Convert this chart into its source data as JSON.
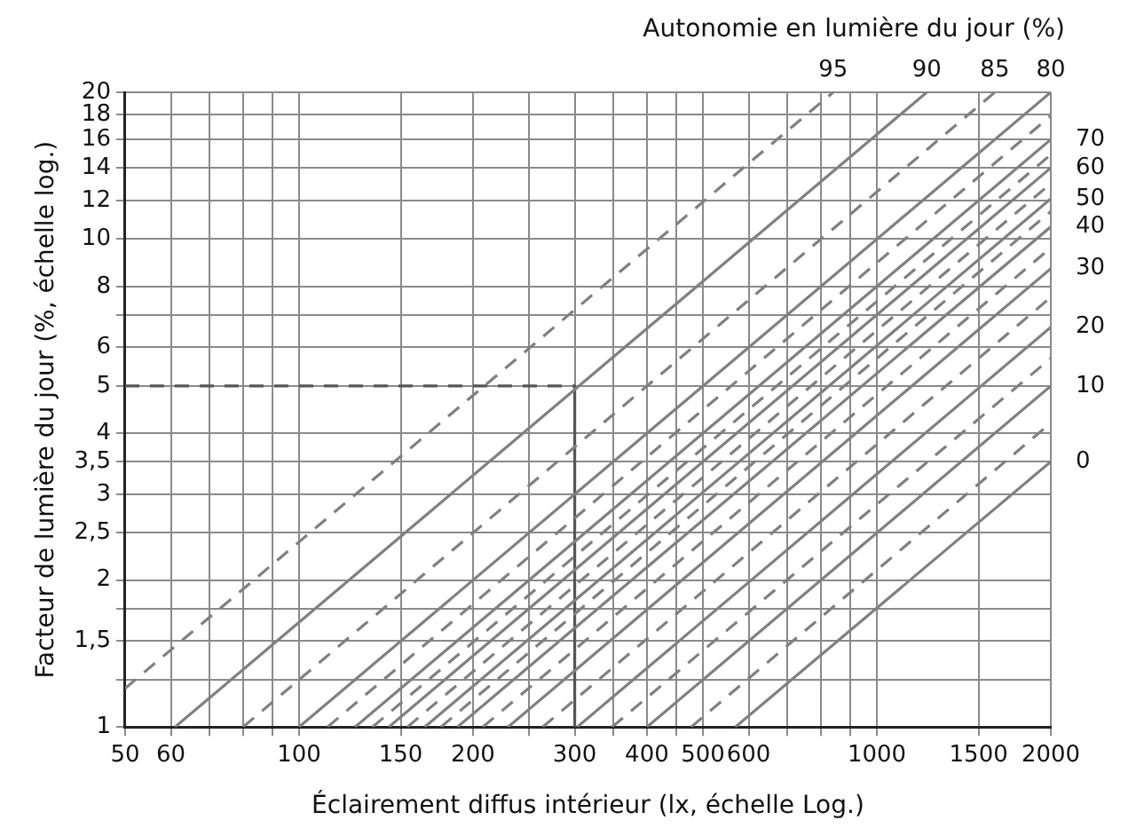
{
  "chart_data": {
    "type": "line",
    "xlabel": "Éclairement diffus intérieur (lx, échelle Log.)",
    "ylabel": "Facteur de lumière du jour (%, échelle log.)",
    "annotations": [
      "Autonomie en lumière du jour (%)"
    ],
    "log": "xy",
    "grid": true,
    "legend": false,
    "marker": "none",
    "xlim": [
      50,
      2000
    ],
    "ylim": [
      1,
      20
    ],
    "xticks": [
      50,
      60,
      {
        "value": 70,
        "label": null
      },
      {
        "value": 80,
        "label": null
      },
      {
        "value": 90,
        "label": null
      },
      100,
      150,
      200,
      {
        "value": 250,
        "label": null
      },
      300,
      {
        "value": 350,
        "label": null
      },
      400,
      {
        "value": 450,
        "label": null
      },
      500,
      600,
      {
        "value": 700,
        "label": null
      },
      {
        "value": 800,
        "label": null
      },
      {
        "value": 900,
        "label": null
      },
      1000,
      1500,
      2000
    ],
    "yticks": [
      1,
      {
        "value": 1.25,
        "label": null
      },
      {
        "value": 1.5,
        "label": "1,5"
      },
      {
        "value": 1.75,
        "label": null
      },
      2,
      {
        "value": 2.5,
        "label": "2,5"
      },
      3,
      {
        "value": 3.5,
        "label": "3,5"
      },
      4,
      5,
      6,
      {
        "value": 7,
        "label": null
      },
      8,
      10,
      12,
      14,
      16,
      18,
      20
    ],
    "series": [
      {
        "name": "95",
        "color": "#808080",
        "line_style": "dashed",
        "x": [
          50,
          840
        ],
        "values": [
          1.2,
          20
        ]
      },
      {
        "name": "90",
        "color": "#808080",
        "line_style": "solid",
        "x": [
          61,
          1220
        ],
        "values": [
          1,
          20
        ]
      },
      {
        "name": "85",
        "color": "#808080",
        "line_style": "dashed",
        "x": [
          80,
          1600
        ],
        "values": [
          1,
          20
        ]
      },
      {
        "name": "80",
        "color": "#808080",
        "line_style": "solid",
        "x": [
          100,
          2000
        ],
        "values": [
          1,
          20
        ]
      },
      {
        "color": "#808080",
        "line_style": "dashed",
        "x": [
          112,
          2000
        ],
        "values": [
          1,
          17.9
        ]
      },
      {
        "name": "70",
        "color": "#808080",
        "line_style": "solid",
        "x": [
          125,
          2000
        ],
        "values": [
          1,
          16
        ]
      },
      {
        "color": "#808080",
        "line_style": "dashed",
        "x": [
          134,
          2000
        ],
        "values": [
          1,
          14.9
        ]
      },
      {
        "name": "60",
        "color": "#808080",
        "line_style": "solid",
        "x": [
          143,
          2000
        ],
        "values": [
          1,
          14
        ]
      },
      {
        "color": "#808080",
        "line_style": "dashed",
        "x": [
          154,
          2000
        ],
        "values": [
          1,
          13
        ]
      },
      {
        "name": "50",
        "color": "#808080",
        "line_style": "solid",
        "x": [
          165,
          2000
        ],
        "values": [
          1,
          12.1
        ]
      },
      {
        "color": "#808080",
        "line_style": "dashed",
        "x": [
          176,
          2000
        ],
        "values": [
          1,
          11.4
        ]
      },
      {
        "name": "40",
        "color": "#808080",
        "line_style": "solid",
        "x": [
          188,
          2000
        ],
        "values": [
          1,
          10.6
        ]
      },
      {
        "color": "#808080",
        "line_style": "dashed",
        "x": [
          208,
          2000
        ],
        "values": [
          1,
          9.6
        ]
      },
      {
        "name": "30",
        "color": "#808080",
        "line_style": "solid",
        "x": [
          230,
          2000
        ],
        "values": [
          1,
          8.7
        ]
      },
      {
        "color": "#808080",
        "line_style": "dashed",
        "x": [
          264,
          2000
        ],
        "values": [
          1,
          7.6
        ]
      },
      {
        "name": "20",
        "color": "#808080",
        "line_style": "solid",
        "x": [
          303,
          2000
        ],
        "values": [
          1,
          6.6
        ]
      },
      {
        "color": "#808080",
        "line_style": "dashed",
        "x": [
          348,
          2000
        ],
        "values": [
          1,
          5.7
        ]
      },
      {
        "name": "10",
        "color": "#808080",
        "line_style": "solid",
        "x": [
          400,
          2000
        ],
        "values": [
          1,
          5
        ]
      },
      {
        "color": "#808080",
        "line_style": "dashed",
        "x": [
          477,
          2000
        ],
        "values": [
          1,
          4.2
        ]
      },
      {
        "name": "0",
        "color": "#808080",
        "line_style": "solid",
        "x": [
          569,
          2000
        ],
        "values": [
          1,
          3.5
        ]
      },
      {
        "color": "#555555",
        "line_style": "dashed",
        "x": [
          50,
          300
        ],
        "values": [
          5,
          5
        ]
      },
      {
        "color": "#555555",
        "line_style": "solid",
        "x": [
          300,
          300
        ],
        "values": [
          5,
          1
        ]
      }
    ]
  }
}
